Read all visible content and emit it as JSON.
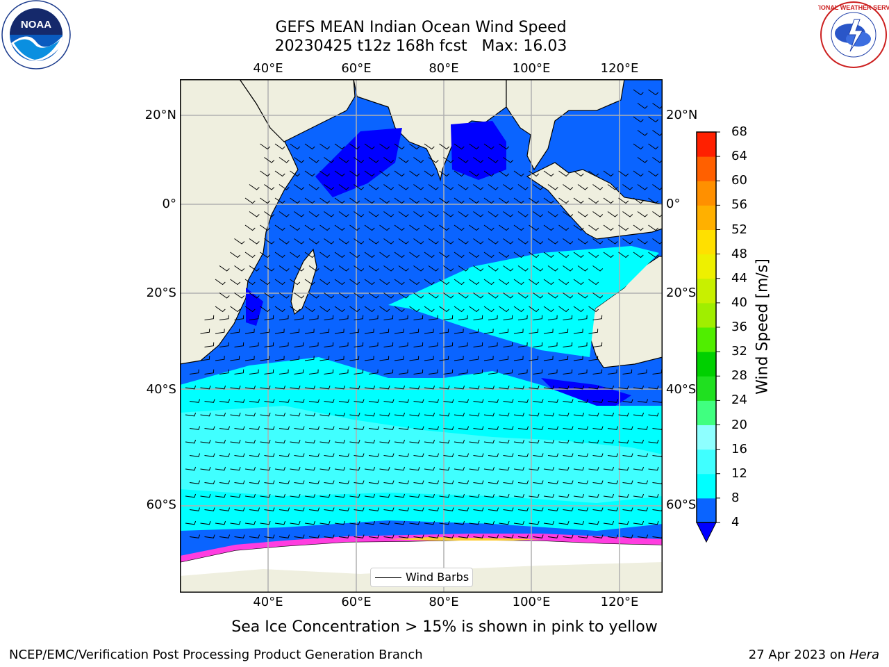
{
  "title": {
    "line1": "GEFS MEAN Indian Ocean Wind Speed",
    "line2": "20230425 t12z 168h fcst   Max: 16.03"
  },
  "map": {
    "lon_ticks": [
      "40°E",
      "60°E",
      "80°E",
      "100°E",
      "120°E"
    ],
    "lat_ticks": [
      "20°N",
      "0°",
      "20°S",
      "40°S",
      "60°S"
    ],
    "legend_label": "Wind Barbs",
    "colors": {
      "land": "#efefdf",
      "ice": "#ffffff",
      "grid": "#b0b0b0"
    }
  },
  "colorbar": {
    "title": "Wind Speed [m/s]",
    "levels": [
      "4",
      "8",
      "12",
      "16",
      "20",
      "24",
      "28",
      "32",
      "36",
      "40",
      "44",
      "48",
      "52",
      "56",
      "60",
      "64",
      "68"
    ],
    "colors": [
      "#0a64ff",
      "#00ffff",
      "#40ffff",
      "#8effff",
      "#40ff80",
      "#20e020",
      "#00d000",
      "#50ee00",
      "#a0ee00",
      "#c8f000",
      "#eef000",
      "#ffe000",
      "#ffb000",
      "#ff9000",
      "#ff6000",
      "#ff2000"
    ],
    "under_color": "#0000ff"
  },
  "footnote": "Sea Ice Concentration > 15% is shown in pink to yellow",
  "credit_left": "NCEP/EMC/Verification Post Processing Product Generation Branch",
  "credit_right": {
    "date": "27 Apr 2023 on ",
    "host": "Hera"
  },
  "logos": {
    "noaa": "NOAA",
    "nws_ring": "NATIONAL WEATHER SERVICE"
  }
}
